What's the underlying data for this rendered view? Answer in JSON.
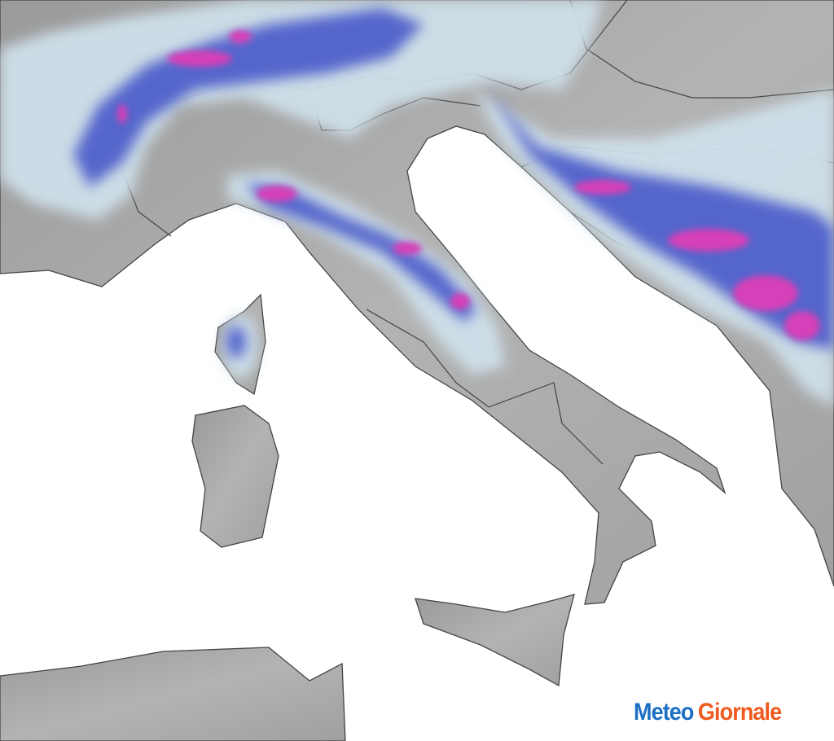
{
  "logo": {
    "part1": "Meteo",
    "part2": "Giornale"
  },
  "colors": {
    "land": "#a9a9a9",
    "sea": "#ffffff",
    "border": "#444444",
    "snow_light": "#cfe0ea",
    "snow_mid": "#3f51c8",
    "snow_heavy": "#d63fb8",
    "logo_blue": "#1a6fc4",
    "logo_orange": "#f05a1e"
  }
}
